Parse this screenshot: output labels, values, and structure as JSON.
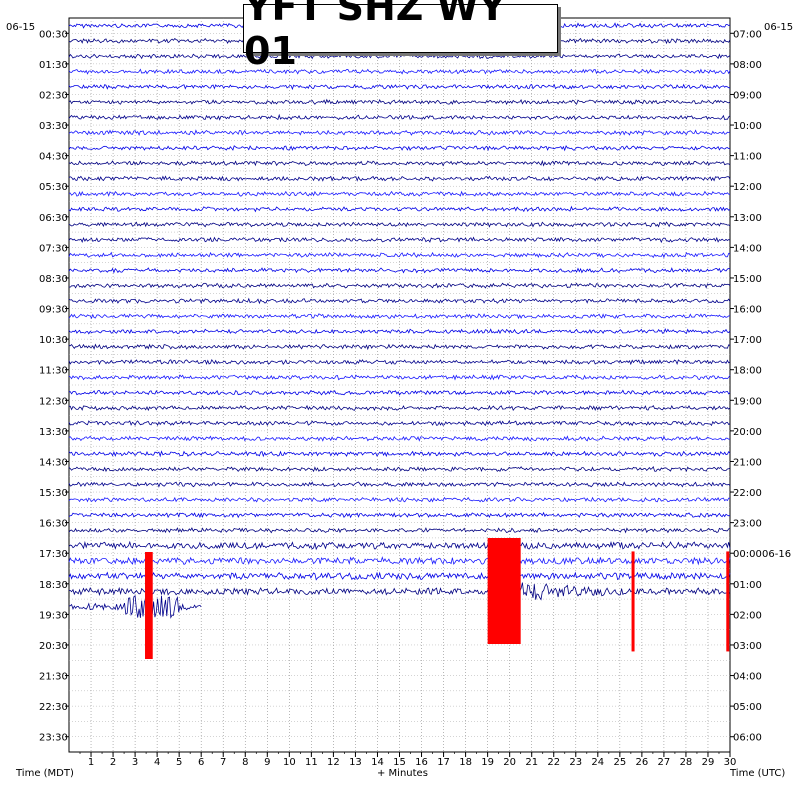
{
  "chart_data": {
    "type": "helicorder",
    "title": "YFT SHZ WY 01",
    "xlabel": "+ Minutes",
    "left_axis_label": "Time (MDT)",
    "right_axis_label": "Time (UTC)",
    "left_date": "06-15",
    "right_date": "06-15",
    "right_date_change": "06-16",
    "xlim": [
      0,
      30
    ],
    "x_ticks": [
      "1",
      "2",
      "3",
      "4",
      "5",
      "6",
      "7",
      "8",
      "9",
      "10",
      "11",
      "12",
      "13",
      "14",
      "15",
      "16",
      "17",
      "18",
      "19",
      "20",
      "21",
      "22",
      "23",
      "24",
      "25",
      "26",
      "27",
      "28",
      "29",
      "30"
    ],
    "left_times": [
      "00:30",
      "01:30",
      "02:30",
      "03:30",
      "04:30",
      "05:30",
      "06:30",
      "07:30",
      "08:30",
      "09:30",
      "10:30",
      "11:30",
      "12:30",
      "13:30",
      "14:30",
      "15:30",
      "16:30",
      "17:30",
      "18:30",
      "19:30",
      "20:30",
      "21:30",
      "22:30",
      "23:30"
    ],
    "right_times": [
      "07:00",
      "08:00",
      "09:00",
      "10:00",
      "11:00",
      "12:00",
      "13:00",
      "14:00",
      "15:00",
      "16:00",
      "17:00",
      "18:00",
      "19:00",
      "20:00",
      "21:00",
      "22:00",
      "23:00",
      "00:00",
      "01:00",
      "02:00",
      "03:00",
      "04:00",
      "05:00",
      "06:00"
    ],
    "trace_colors": [
      "#0000e6",
      "#000080",
      "#00008b",
      "#1a1aff"
    ],
    "clip_color": "#ff0000",
    "grid": true,
    "rows_with_data": 39,
    "events": [
      {
        "row": 37,
        "minute": 3.6,
        "label": "clipped"
      },
      {
        "row": 36,
        "minute": 19.8,
        "label": "clipped"
      },
      {
        "row": 37,
        "minute": 25.6,
        "label": "clipped"
      },
      {
        "row": 37,
        "minute": 29.9,
        "label": "clipped"
      }
    ]
  }
}
